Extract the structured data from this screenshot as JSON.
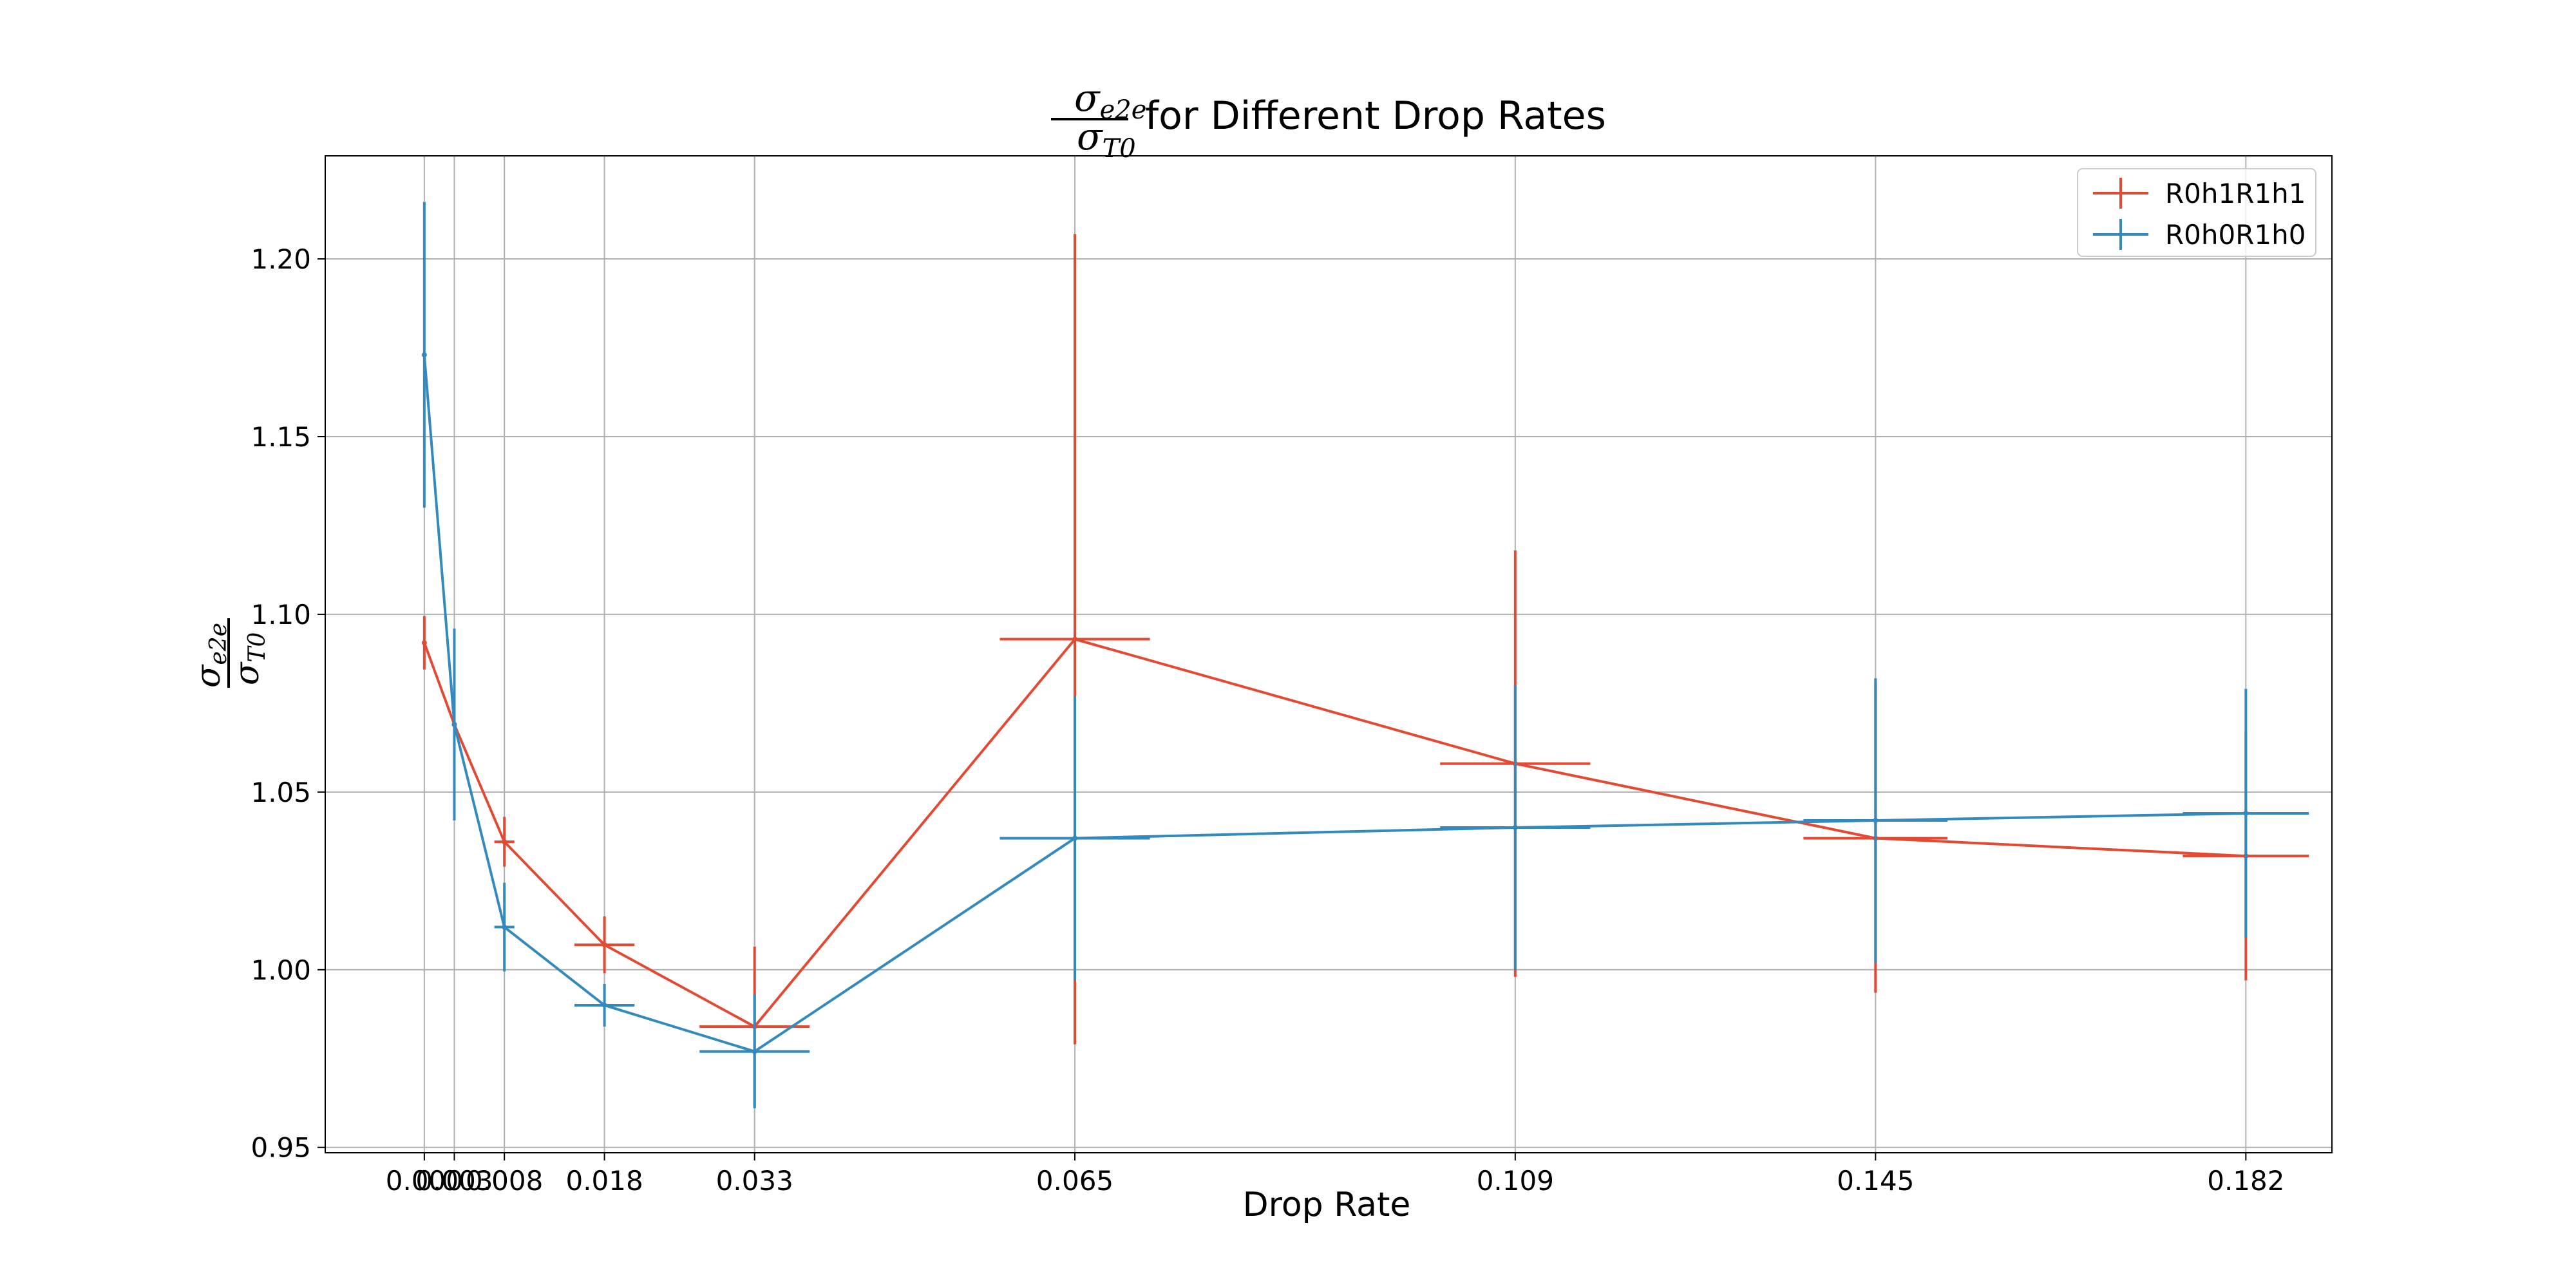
{
  "chart_data": {
    "type": "line",
    "title": {
      "numerator": "σ",
      "numerator_sub": "e2e",
      "denominator": "σ",
      "denominator_sub": "T0",
      "text": "for Different Drop Rates"
    },
    "xlabel": "Drop Rate",
    "ylabel": {
      "numerator": "σ",
      "numerator_sub": "e2e",
      "denominator": "σ",
      "denominator_sub": "T0"
    },
    "xlim": [
      -0.0099,
      0.1906
    ],
    "ylim": [
      0.9485,
      1.229
    ],
    "x_ticks": [
      0.0,
      0.003,
      0.008,
      0.018,
      0.033,
      0.065,
      0.109,
      0.145,
      0.182
    ],
    "x_tick_labels": [
      "0.000",
      "0.003",
      "0.008",
      "0.018",
      "0.033",
      "0.065",
      "0.109",
      "0.145",
      "0.182"
    ],
    "y_ticks": [
      0.95,
      1.0,
      1.05,
      1.1,
      1.15,
      1.2
    ],
    "y_tick_labels": [
      "0.95",
      "1.00",
      "1.05",
      "1.10",
      "1.15",
      "1.20"
    ],
    "grid": true,
    "legend_position": "top-right",
    "series": [
      {
        "name": "R0h1R1h1",
        "color": "#e24a33",
        "x": [
          0.0,
          0.003,
          0.008,
          0.018,
          0.033,
          0.065,
          0.109,
          0.145,
          0.182
        ],
        "y": [
          1.092,
          1.069,
          1.036,
          1.007,
          0.984,
          1.093,
          1.058,
          1.037,
          1.032
        ],
        "y_err": [
          0.0075,
          0.0,
          0.007,
          0.008,
          0.0225,
          0.114,
          0.06,
          0.0435,
          0.035
        ],
        "x_err": [
          0.0,
          0.0,
          0.001,
          0.003,
          0.0055,
          0.0075,
          0.0075,
          0.0072,
          0.0063
        ]
      },
      {
        "name": "R0h0R1h0",
        "color": "#348abd",
        "x": [
          0.0,
          0.003,
          0.008,
          0.018,
          0.033,
          0.065,
          0.109,
          0.145,
          0.182
        ],
        "y": [
          1.173,
          1.069,
          1.012,
          0.99,
          0.977,
          1.037,
          1.04,
          1.042,
          1.044
        ],
        "y_err": [
          0.043,
          0.027,
          0.0125,
          0.006,
          0.016,
          0.04,
          0.04,
          0.04,
          0.035
        ],
        "x_err": [
          0.0,
          0.0,
          0.001,
          0.003,
          0.0055,
          0.0075,
          0.0075,
          0.0072,
          0.0063
        ]
      }
    ]
  }
}
